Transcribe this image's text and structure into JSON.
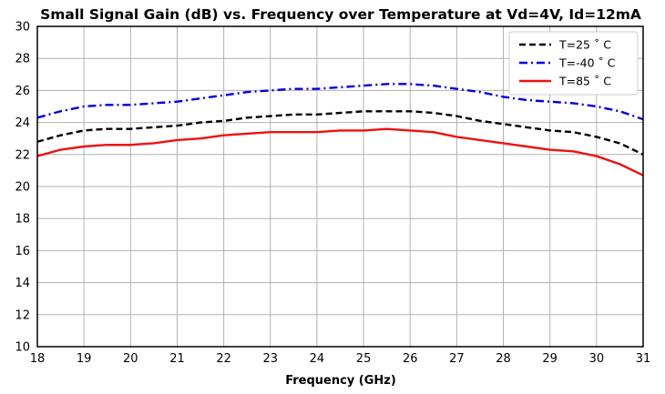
{
  "chart_data": {
    "type": "line",
    "title": "Small Signal Gain (dB) vs. Frequency over Temperature at Vd=4V, Id=12mA",
    "xlabel": "Frequency (GHz)",
    "ylabel": "",
    "xlim": [
      18,
      31
    ],
    "ylim": [
      10,
      30
    ],
    "xticks": [
      18,
      19,
      20,
      21,
      22,
      23,
      24,
      25,
      26,
      27,
      28,
      29,
      30,
      31
    ],
    "yticks": [
      10,
      12,
      14,
      16,
      18,
      20,
      22,
      24,
      26,
      28,
      30
    ],
    "grid": true,
    "legend_position": "top-right",
    "x": [
      18,
      18.5,
      19,
      19.5,
      20,
      20.5,
      21,
      21.5,
      22,
      22.5,
      23,
      23.5,
      24,
      24.5,
      25,
      25.5,
      26,
      26.5,
      27,
      27.5,
      28,
      28.5,
      29,
      29.5,
      30,
      30.5,
      31
    ],
    "series": [
      {
        "name": "T=25 ˚ C",
        "color": "#000000",
        "dash": "dashed",
        "values": [
          22.8,
          23.2,
          23.5,
          23.6,
          23.6,
          23.7,
          23.8,
          24.0,
          24.1,
          24.3,
          24.4,
          24.5,
          24.5,
          24.6,
          24.7,
          24.7,
          24.7,
          24.6,
          24.4,
          24.1,
          23.9,
          23.7,
          23.5,
          23.4,
          23.1,
          22.7,
          22.0
        ]
      },
      {
        "name": "T=-40 ˚ C",
        "color": "#0000e6",
        "dash": "dashdot",
        "values": [
          24.3,
          24.7,
          25.0,
          25.1,
          25.1,
          25.2,
          25.3,
          25.5,
          25.7,
          25.9,
          26.0,
          26.1,
          26.1,
          26.2,
          26.3,
          26.4,
          26.4,
          26.3,
          26.1,
          25.9,
          25.6,
          25.4,
          25.3,
          25.2,
          25.0,
          24.7,
          24.2
        ]
      },
      {
        "name": "T=85 ˚ C",
        "color": "#ee1111",
        "dash": "solid",
        "values": [
          21.9,
          22.3,
          22.5,
          22.6,
          22.6,
          22.7,
          22.9,
          23.0,
          23.2,
          23.3,
          23.4,
          23.4,
          23.4,
          23.5,
          23.5,
          23.6,
          23.5,
          23.4,
          23.1,
          22.9,
          22.7,
          22.5,
          22.3,
          22.2,
          21.9,
          21.4,
          20.7
        ]
      }
    ]
  }
}
